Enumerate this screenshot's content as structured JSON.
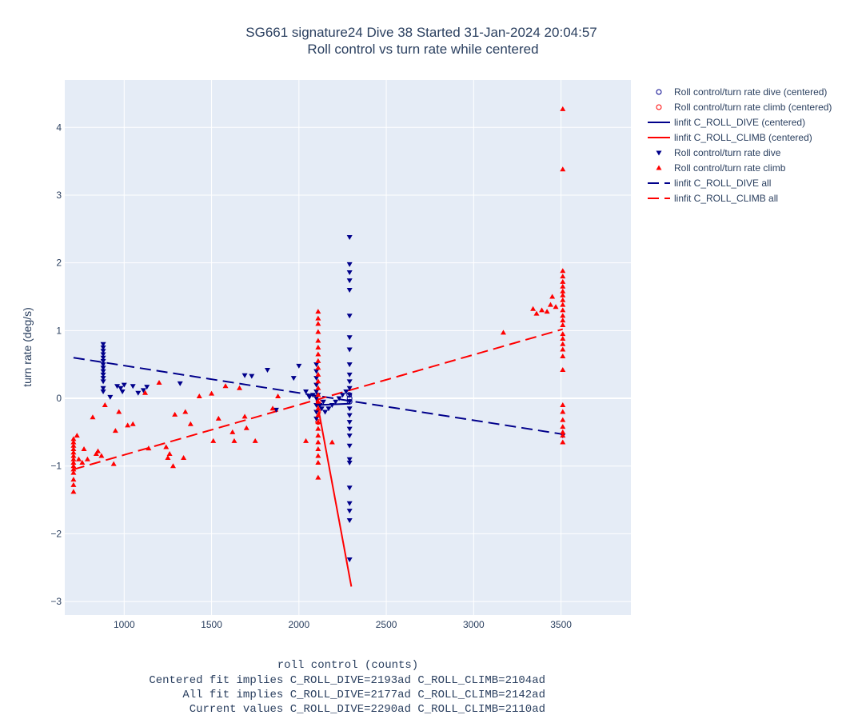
{
  "chart_data": {
    "type": "scatter",
    "title": "SG661 signature24 Dive 38 Started 31-Jan-2024 20:04:57",
    "subtitle": "Roll control vs turn rate while centered",
    "xlabel": "roll control (counts)",
    "xlabel_notes": [
      "Centered fit implies C_ROLL_DIVE=2193ad C_ROLL_CLIMB=2104ad",
      "All fit implies C_ROLL_DIVE=2177ad C_ROLL_CLIMB=2142ad",
      "Current values C_ROLL_DIVE=2290ad C_ROLL_CLIMB=2110ad"
    ],
    "ylabel": "turn rate (deg/s)",
    "xlim": [
      660,
      3900
    ],
    "ylim": [
      -3.2,
      4.7
    ],
    "x_ticks": [
      1000,
      1500,
      2000,
      2500,
      3000,
      3500
    ],
    "x_tick_labels": [
      "1000",
      "1500",
      "2000",
      "2500",
      "3000",
      "3500"
    ],
    "y_ticks": [
      -3,
      -2,
      -1,
      0,
      1,
      2,
      3,
      4
    ],
    "y_tick_labels": [
      "−3",
      "−2",
      "−1",
      "0",
      "1",
      "2",
      "3",
      "4"
    ],
    "grid": true,
    "legend_position": "right",
    "colors": {
      "dive": "#00008b",
      "climb": "#ff0000",
      "plot_bg": "#e5ecf6",
      "text": "#2a3f5f"
    },
    "series": [
      {
        "name": "Roll control/turn rate dive (centered)",
        "kind": "scatter",
        "marker": "circle-open",
        "color": "#00008b",
        "points": [
          [
            2290,
            0.0
          ],
          [
            2290,
            -0.05
          ],
          [
            2288,
            0.05
          ]
        ]
      },
      {
        "name": "Roll control/turn rate climb (centered)",
        "kind": "scatter",
        "marker": "circle-open",
        "color": "#ff0000",
        "points": [
          [
            2110,
            -0.2
          ],
          [
            2110,
            -0.35
          ],
          [
            2112,
            -0.05
          ]
        ]
      },
      {
        "name": "linfit C_ROLL_DIVE (centered)",
        "kind": "line",
        "dash": "solid",
        "color": "#00008b",
        "points": [
          [
            2100,
            -0.1
          ],
          [
            2290,
            -0.08
          ]
        ]
      },
      {
        "name": "linfit C_ROLL_CLIMB (centered)",
        "kind": "line",
        "dash": "solid",
        "color": "#ff0000",
        "points": [
          [
            2100,
            0.0
          ],
          [
            2300,
            -2.78
          ]
        ]
      },
      {
        "name": "Roll control/turn rate dive",
        "kind": "scatter",
        "marker": "triangle-down",
        "color": "#00008b",
        "points": [
          [
            880,
            0.8
          ],
          [
            880,
            0.75
          ],
          [
            880,
            0.7
          ],
          [
            880,
            0.65
          ],
          [
            880,
            0.6
          ],
          [
            880,
            0.55
          ],
          [
            880,
            0.5
          ],
          [
            880,
            0.45
          ],
          [
            880,
            0.4
          ],
          [
            880,
            0.35
          ],
          [
            880,
            0.3
          ],
          [
            880,
            0.25
          ],
          [
            880,
            0.15
          ],
          [
            880,
            0.1
          ],
          [
            920,
            0.02
          ],
          [
            960,
            0.18
          ],
          [
            980,
            0.15
          ],
          [
            1000,
            0.2
          ],
          [
            990,
            0.1
          ],
          [
            1050,
            0.18
          ],
          [
            1080,
            0.08
          ],
          [
            1110,
            0.12
          ],
          [
            1130,
            0.17
          ],
          [
            1320,
            0.22
          ],
          [
            1690,
            0.34
          ],
          [
            1730,
            0.33
          ],
          [
            1820,
            0.42
          ],
          [
            1870,
            -0.17
          ],
          [
            1970,
            0.3
          ],
          [
            2000,
            0.48
          ],
          [
            2040,
            0.1
          ],
          [
            2060,
            0.02
          ],
          [
            2080,
            0.05
          ],
          [
            2100,
            0.5
          ],
          [
            2100,
            0.4
          ],
          [
            2100,
            0.3
          ],
          [
            2100,
            0.2
          ],
          [
            2100,
            0.1
          ],
          [
            2100,
            0.0
          ],
          [
            2100,
            -0.1
          ],
          [
            2100,
            -0.2
          ],
          [
            2100,
            -0.3
          ],
          [
            2110,
            0.05
          ],
          [
            2120,
            -0.1
          ],
          [
            2130,
            -0.15
          ],
          [
            2140,
            -0.05
          ],
          [
            2150,
            -0.2
          ],
          [
            2170,
            -0.15
          ],
          [
            2190,
            -0.1
          ],
          [
            2210,
            -0.05
          ],
          [
            2230,
            0.0
          ],
          [
            2250,
            0.05
          ],
          [
            2270,
            0.1
          ],
          [
            2290,
            2.38
          ],
          [
            2290,
            1.98
          ],
          [
            2290,
            1.86
          ],
          [
            2290,
            1.74
          ],
          [
            2290,
            1.6
          ],
          [
            2290,
            1.22
          ],
          [
            2290,
            0.9
          ],
          [
            2290,
            0.72
          ],
          [
            2290,
            0.5
          ],
          [
            2290,
            0.35
          ],
          [
            2290,
            0.25
          ],
          [
            2290,
            0.15
          ],
          [
            2290,
            0.05
          ],
          [
            2290,
            -0.05
          ],
          [
            2290,
            -0.15
          ],
          [
            2290,
            -0.25
          ],
          [
            2290,
            -0.35
          ],
          [
            2290,
            -0.45
          ],
          [
            2290,
            -0.55
          ],
          [
            2290,
            -0.7
          ],
          [
            2290,
            -0.9
          ],
          [
            2290,
            -0.95
          ],
          [
            2290,
            -1.32
          ],
          [
            2290,
            -1.55
          ],
          [
            2290,
            -1.66
          ],
          [
            2290,
            -1.8
          ],
          [
            2290,
            -2.38
          ],
          [
            3510,
            -0.55
          ]
        ]
      },
      {
        "name": "Roll control/turn rate climb",
        "kind": "scatter",
        "marker": "triangle-up",
        "color": "#ff0000",
        "points": [
          [
            710,
            -0.6
          ],
          [
            710,
            -0.65
          ],
          [
            710,
            -0.7
          ],
          [
            710,
            -0.75
          ],
          [
            710,
            -0.8
          ],
          [
            710,
            -0.85
          ],
          [
            710,
            -0.9
          ],
          [
            710,
            -0.95
          ],
          [
            710,
            -1.0
          ],
          [
            710,
            -1.05
          ],
          [
            710,
            -1.1
          ],
          [
            710,
            -1.2
          ],
          [
            710,
            -1.28
          ],
          [
            710,
            -1.38
          ],
          [
            730,
            -0.55
          ],
          [
            740,
            -0.9
          ],
          [
            760,
            -0.95
          ],
          [
            770,
            -0.75
          ],
          [
            790,
            -0.9
          ],
          [
            820,
            -0.28
          ],
          [
            840,
            -0.82
          ],
          [
            850,
            -0.78
          ],
          [
            870,
            -0.85
          ],
          [
            890,
            -0.1
          ],
          [
            940,
            -0.97
          ],
          [
            950,
            -0.48
          ],
          [
            970,
            -0.2
          ],
          [
            1020,
            -0.4
          ],
          [
            1050,
            -0.38
          ],
          [
            1120,
            0.08
          ],
          [
            1140,
            -0.74
          ],
          [
            1200,
            0.23
          ],
          [
            1240,
            -0.72
          ],
          [
            1250,
            -0.88
          ],
          [
            1260,
            -0.82
          ],
          [
            1280,
            -1.0
          ],
          [
            1290,
            -0.24
          ],
          [
            1340,
            -0.88
          ],
          [
            1350,
            -0.2
          ],
          [
            1380,
            -0.38
          ],
          [
            1430,
            0.03
          ],
          [
            1500,
            0.07
          ],
          [
            1510,
            -0.63
          ],
          [
            1540,
            -0.3
          ],
          [
            1580,
            0.18
          ],
          [
            1620,
            -0.5
          ],
          [
            1630,
            -0.63
          ],
          [
            1660,
            0.15
          ],
          [
            1690,
            -0.27
          ],
          [
            1700,
            -0.44
          ],
          [
            1750,
            -0.63
          ],
          [
            1850,
            -0.15
          ],
          [
            1880,
            0.03
          ],
          [
            2040,
            -0.63
          ],
          [
            2110,
            1.28
          ],
          [
            2110,
            1.18
          ],
          [
            2110,
            1.1
          ],
          [
            2110,
            0.98
          ],
          [
            2110,
            0.85
          ],
          [
            2110,
            0.75
          ],
          [
            2110,
            0.65
          ],
          [
            2110,
            0.55
          ],
          [
            2110,
            0.45
          ],
          [
            2110,
            0.35
          ],
          [
            2110,
            0.25
          ],
          [
            2110,
            0.15
          ],
          [
            2110,
            0.05
          ],
          [
            2110,
            -0.05
          ],
          [
            2110,
            -0.15
          ],
          [
            2110,
            -0.25
          ],
          [
            2110,
            -0.35
          ],
          [
            2110,
            -0.45
          ],
          [
            2110,
            -0.55
          ],
          [
            2110,
            -0.65
          ],
          [
            2110,
            -0.75
          ],
          [
            2110,
            -0.85
          ],
          [
            2110,
            -0.95
          ],
          [
            2110,
            -1.17
          ],
          [
            2190,
            -0.65
          ],
          [
            3170,
            0.97
          ],
          [
            3340,
            1.32
          ],
          [
            3360,
            1.25
          ],
          [
            3390,
            1.3
          ],
          [
            3420,
            1.28
          ],
          [
            3440,
            1.38
          ],
          [
            3450,
            1.5
          ],
          [
            3470,
            1.35
          ],
          [
            3510,
            4.27
          ],
          [
            3510,
            3.38
          ],
          [
            3510,
            1.88
          ],
          [
            3510,
            1.8
          ],
          [
            3510,
            1.72
          ],
          [
            3510,
            1.65
          ],
          [
            3510,
            1.58
          ],
          [
            3510,
            1.52
          ],
          [
            3510,
            1.45
          ],
          [
            3510,
            1.38
          ],
          [
            3510,
            1.3
          ],
          [
            3510,
            1.22
          ],
          [
            3510,
            1.15
          ],
          [
            3510,
            1.08
          ],
          [
            3510,
            0.95
          ],
          [
            3510,
            0.88
          ],
          [
            3510,
            0.8
          ],
          [
            3510,
            0.72
          ],
          [
            3510,
            0.62
          ],
          [
            3510,
            0.42
          ],
          [
            3510,
            -0.1
          ],
          [
            3510,
            -0.2
          ],
          [
            3510,
            -0.32
          ],
          [
            3510,
            -0.42
          ],
          [
            3510,
            -0.5
          ],
          [
            3510,
            -0.55
          ],
          [
            3510,
            -0.65
          ]
        ]
      },
      {
        "name": "linfit C_ROLL_DIVE all",
        "kind": "line",
        "dash": "dash",
        "color": "#00008b",
        "points": [
          [
            710,
            0.6
          ],
          [
            3510,
            -0.53
          ]
        ]
      },
      {
        "name": "linfit C_ROLL_CLIMB all",
        "kind": "line",
        "dash": "dash",
        "color": "#ff0000",
        "points": [
          [
            710,
            -1.05
          ],
          [
            3510,
            1.02
          ]
        ]
      }
    ]
  }
}
